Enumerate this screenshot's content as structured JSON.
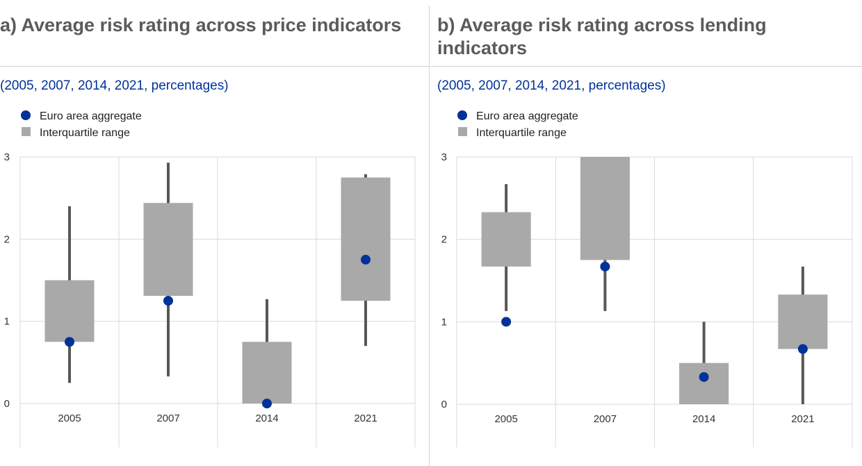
{
  "colors": {
    "title": "#5b5b5b",
    "subtitle": "#003299",
    "aggregate_dot": "#003299",
    "iqr_box": "#a9a9a9",
    "whisker": "#575757",
    "grid": "#d9d9d9"
  },
  "chart_data": [
    {
      "type": "box",
      "title": "a) Average risk rating across price indicators",
      "subtitle": "(2005, 2007, 2014, 2021, percentages)",
      "legend": [
        "Euro area aggregate",
        "Interquartile range"
      ],
      "legend_placement": "top-left",
      "categories": [
        "2005",
        "2007",
        "2014",
        "2021"
      ],
      "ylim": [
        0,
        3
      ],
      "yticks": [
        "0",
        "1",
        "2",
        "3"
      ],
      "grid": true,
      "whisker_low": [
        0.25,
        0.33,
        0.0,
        0.7
      ],
      "q1": [
        0.75,
        1.31,
        0.0,
        1.25
      ],
      "q3": [
        1.5,
        2.44,
        0.75,
        2.75
      ],
      "whisker_high": [
        2.4,
        2.93,
        1.27,
        2.79
      ],
      "euro_area_aggregate": [
        0.75,
        1.25,
        0.0,
        1.75
      ]
    },
    {
      "type": "box",
      "title": "b) Average risk rating across lending indicators",
      "subtitle": "(2005, 2007, 2014, 2021, percentages)",
      "legend": [
        "Euro area aggregate",
        "Interquartile range"
      ],
      "legend_placement": "top-left",
      "categories": [
        "2005",
        "2007",
        "2014",
        "2021"
      ],
      "ylim": [
        0,
        3
      ],
      "yticks": [
        "0",
        "1",
        "2",
        "3"
      ],
      "grid": true,
      "whisker_low": [
        1.13,
        1.13,
        0.0,
        0.0
      ],
      "q1": [
        1.67,
        1.75,
        0.0,
        0.67
      ],
      "q3": [
        2.33,
        3.0,
        0.5,
        1.33
      ],
      "whisker_high": [
        2.67,
        3.0,
        1.0,
        1.67
      ],
      "euro_area_aggregate": [
        1.0,
        1.67,
        0.33,
        0.67
      ]
    }
  ]
}
